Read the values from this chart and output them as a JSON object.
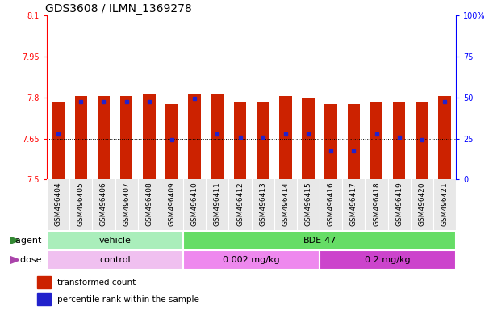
{
  "title": "GDS3608 / ILMN_1369278",
  "samples": [
    "GSM496404",
    "GSM496405",
    "GSM496406",
    "GSM496407",
    "GSM496408",
    "GSM496409",
    "GSM496410",
    "GSM496411",
    "GSM496412",
    "GSM496413",
    "GSM496414",
    "GSM496415",
    "GSM496416",
    "GSM496417",
    "GSM496418",
    "GSM496419",
    "GSM496420",
    "GSM496421"
  ],
  "bar_tops": [
    7.785,
    7.805,
    7.805,
    7.805,
    7.81,
    7.775,
    7.815,
    7.81,
    7.785,
    7.785,
    7.805,
    7.795,
    7.775,
    7.775,
    7.785,
    7.785,
    7.785,
    7.805
  ],
  "blue_positions": [
    7.665,
    7.785,
    7.785,
    7.785,
    7.785,
    7.645,
    7.795,
    7.665,
    7.655,
    7.655,
    7.665,
    7.665,
    7.605,
    7.605,
    7.665,
    7.655,
    7.645,
    7.785
  ],
  "ylim_left": [
    7.5,
    8.1
  ],
  "ylim_right": [
    0,
    100
  ],
  "yticks_left": [
    7.5,
    7.65,
    7.8,
    7.95,
    8.1
  ],
  "yticks_right": [
    0,
    25,
    50,
    75,
    100
  ],
  "bar_color": "#cc2200",
  "blue_color": "#2222cc",
  "bar_bottom": 7.5,
  "agent_groups": [
    {
      "label": "vehicle",
      "start": 0,
      "end": 6,
      "color": "#aaeebb"
    },
    {
      "label": "BDE-47",
      "start": 6,
      "end": 18,
      "color": "#66dd66"
    }
  ],
  "dose_groups": [
    {
      "label": "control",
      "start": 0,
      "end": 6,
      "color": "#f0c0f0"
    },
    {
      "label": "0.002 mg/kg",
      "start": 6,
      "end": 12,
      "color": "#ee88ee"
    },
    {
      "label": "0.2 mg/kg",
      "start": 12,
      "end": 18,
      "color": "#cc44cc"
    }
  ],
  "legend_red_label": "transformed count",
  "legend_blue_label": "percentile rank within the sample",
  "agent_label": "agent",
  "dose_label": "dose",
  "grid_lines": [
    7.65,
    7.8,
    7.95
  ],
  "bar_width": 0.55,
  "title_fontsize": 10,
  "tick_fontsize": 7,
  "label_fontsize": 8,
  "bg_color": "#e8e8e8"
}
